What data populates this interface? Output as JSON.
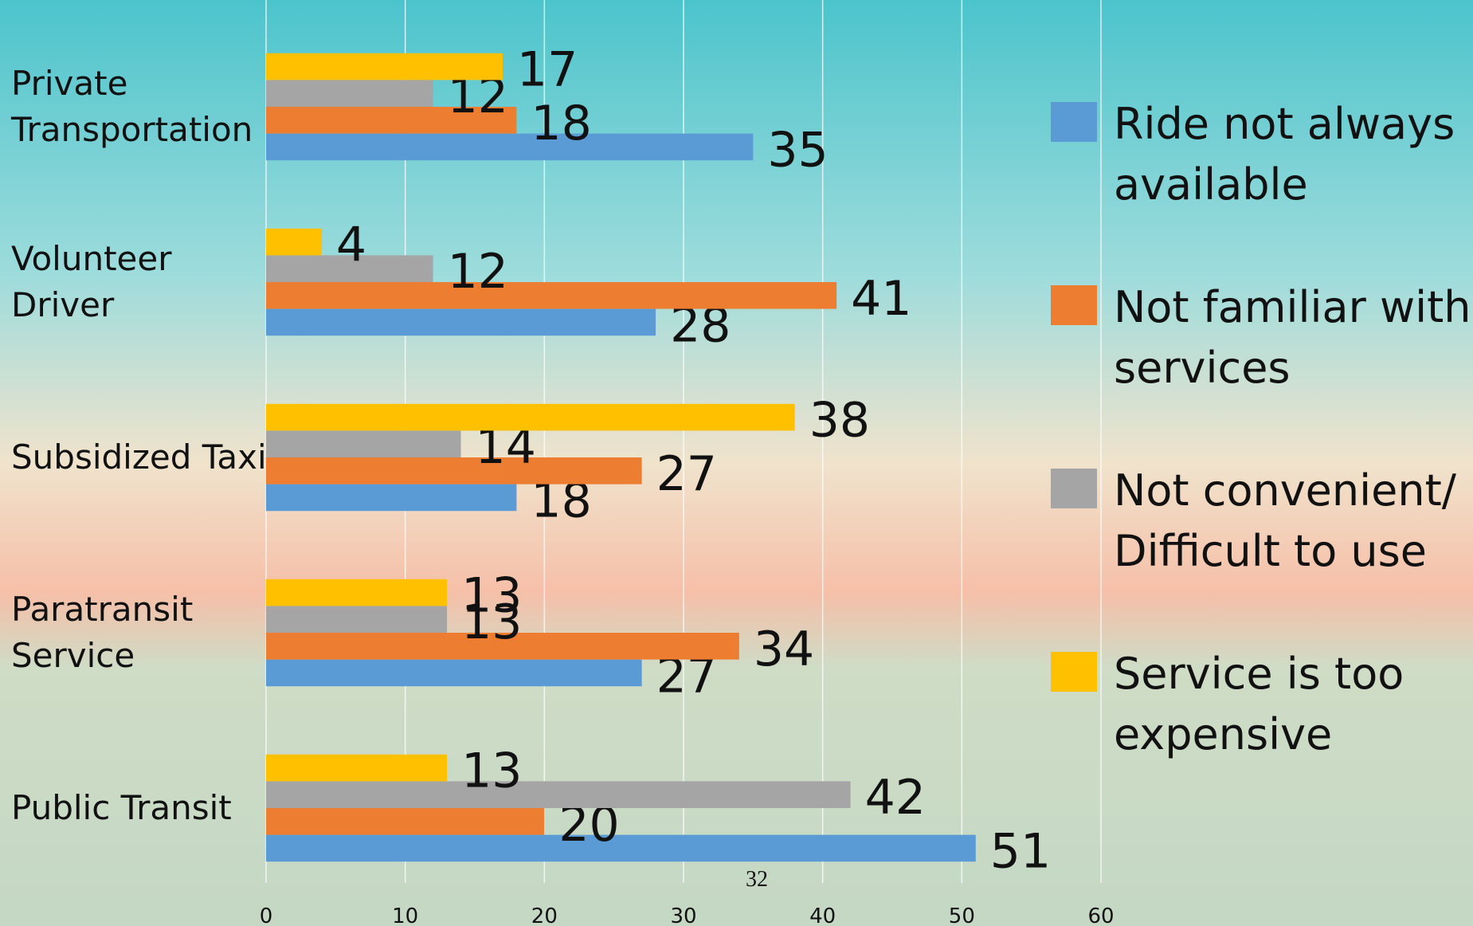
{
  "chart_data": {
    "type": "hbar",
    "categories": [
      "Private\nTransportation",
      "Volunteer\nDriver",
      "Subsidized Taxi",
      "Paratransit\nService",
      "Public Transit"
    ],
    "series": [
      {
        "name": "Ride not always\navailable",
        "color": "#5b9bd5",
        "values": [
          35,
          28,
          18,
          27,
          51
        ]
      },
      {
        "name": "Not familiar with\nservices",
        "color": "#ed7d31",
        "values": [
          18,
          41,
          27,
          34,
          20
        ]
      },
      {
        "name": "Not convenient/\nDifficult to use",
        "color": "#a5a5a5",
        "values": [
          12,
          12,
          14,
          13,
          42
        ]
      },
      {
        "name": "Service is too\nexpensive",
        "color": "#ffc000",
        "values": [
          17,
          4,
          38,
          13,
          13
        ]
      }
    ],
    "xlim": [
      0,
      60
    ],
    "xticks": [
      0,
      10,
      20,
      30,
      40,
      50,
      60
    ],
    "grid": true,
    "legend": "right"
  },
  "page_number": "32"
}
